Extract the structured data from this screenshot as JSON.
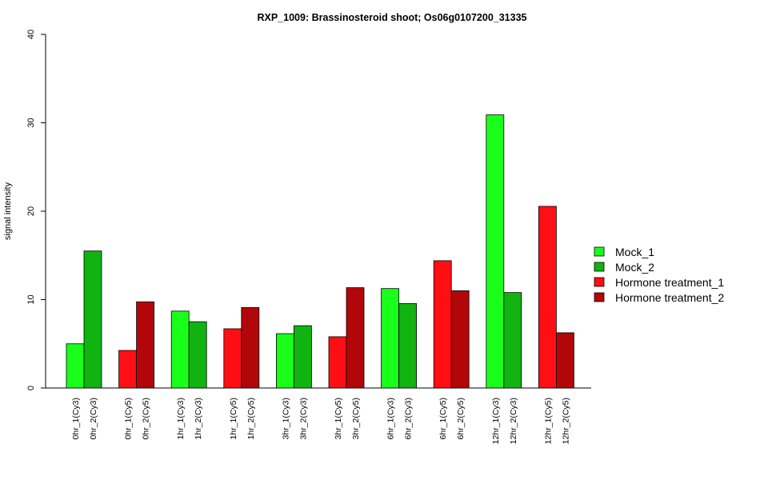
{
  "chart_data": {
    "type": "bar",
    "title": "RXP_1009: Brassinosteroid shoot; Os06g0107200_31335",
    "xlabel": "",
    "ylabel": "signal intensity",
    "ylim": [
      0,
      40
    ],
    "yticks": [
      0,
      10,
      20,
      30,
      40
    ],
    "grid": false,
    "legend_position": "right",
    "series": [
      {
        "name": "Mock_1",
        "color": "#1aff1a"
      },
      {
        "name": "Mock_2",
        "color": "#11b311"
      },
      {
        "name": "Hormone treatment_1",
        "color": "#ff0f13"
      },
      {
        "name": "Hormone treatment_2",
        "color": "#b3060a"
      }
    ],
    "groups": [
      {
        "bars": [
          {
            "label": "0hr_1(Cy3)",
            "value": 5.0,
            "series": 0
          },
          {
            "label": "0hr_2(Cy3)",
            "value": 15.5,
            "series": 1
          }
        ]
      },
      {
        "bars": [
          {
            "label": "0hr_1(Cy5)",
            "value": 4.25,
            "series": 2
          },
          {
            "label": "0hr_2(Cy5)",
            "value": 9.75,
            "series": 3
          }
        ]
      },
      {
        "bars": [
          {
            "label": "1hr_1(Cy3)",
            "value": 8.7,
            "series": 0
          },
          {
            "label": "1hr_2(Cy3)",
            "value": 7.5,
            "series": 1
          }
        ]
      },
      {
        "bars": [
          {
            "label": "1hr_1(Cy5)",
            "value": 6.7,
            "series": 2
          },
          {
            "label": "1hr_2(Cy5)",
            "value": 9.1,
            "series": 3
          }
        ]
      },
      {
        "bars": [
          {
            "label": "3hr_1(Cy3)",
            "value": 6.15,
            "series": 0
          },
          {
            "label": "3hr_2(Cy3)",
            "value": 7.05,
            "series": 1
          }
        ]
      },
      {
        "bars": [
          {
            "label": "3hr_1(Cy5)",
            "value": 5.8,
            "series": 2
          },
          {
            "label": "3hr_2(Cy5)",
            "value": 11.35,
            "series": 3
          }
        ]
      },
      {
        "bars": [
          {
            "label": "6hr_1(Cy3)",
            "value": 11.25,
            "series": 0
          },
          {
            "label": "6hr_2(Cy3)",
            "value": 9.55,
            "series": 1
          }
        ]
      },
      {
        "bars": [
          {
            "label": "6hr_1(Cy5)",
            "value": 14.4,
            "series": 2
          },
          {
            "label": "6hr_2(Cy5)",
            "value": 11.0,
            "series": 3
          }
        ]
      },
      {
        "bars": [
          {
            "label": "12hr_1(Cy3)",
            "value": 30.9,
            "series": 0
          },
          {
            "label": "12hr_2(Cy3)",
            "value": 10.8,
            "series": 1
          }
        ]
      },
      {
        "bars": [
          {
            "label": "12hr_1(Cy5)",
            "value": 20.55,
            "series": 2
          },
          {
            "label": "12hr_2(Cy5)",
            "value": 6.25,
            "series": 3
          }
        ]
      }
    ]
  }
}
